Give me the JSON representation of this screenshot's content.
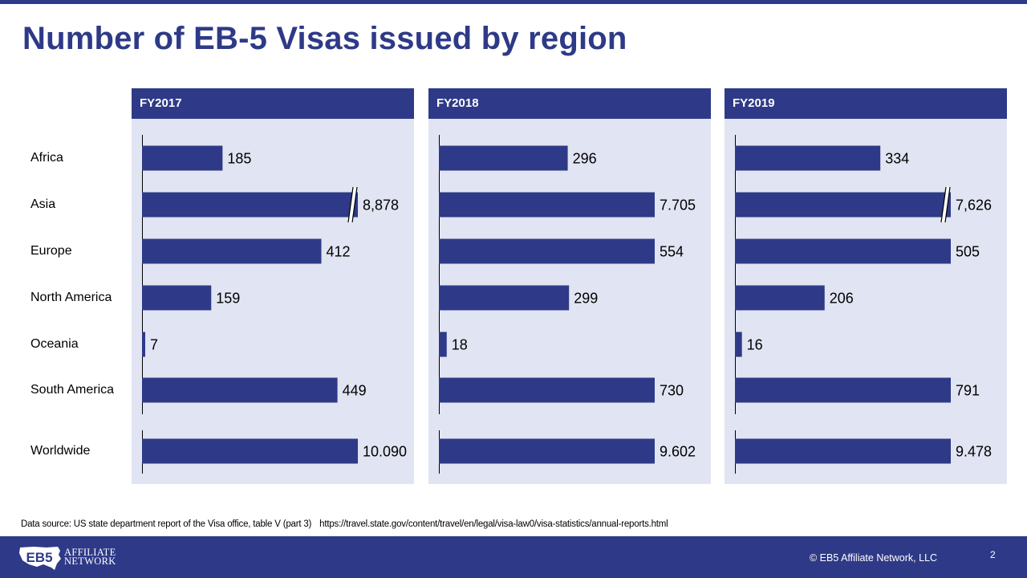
{
  "title": "Number of EB-5 Visas issued by region",
  "categories": [
    "Africa",
    "Asia",
    "Europe",
    "North America",
    "Oceania",
    "South America",
    "Worldwide"
  ],
  "chart_data": [
    {
      "type": "bar",
      "title": "FY2017",
      "categories": [
        "Africa",
        "Asia",
        "Europe",
        "North America",
        "Oceania",
        "South America",
        "Worldwide"
      ],
      "values": [
        185,
        8878,
        412,
        159,
        7,
        449,
        10090
      ],
      "labels": [
        "185",
        "8,878",
        "412",
        "159",
        "7",
        "449",
        "10.090"
      ],
      "axis_breaks": [
        "Asia"
      ]
    },
    {
      "type": "bar",
      "title": "FY2018",
      "categories": [
        "Africa",
        "Asia",
        "Europe",
        "North America",
        "Oceania",
        "South America",
        "Worldwide"
      ],
      "values": [
        296,
        7705,
        554,
        299,
        18,
        730,
        9602
      ],
      "labels": [
        "296",
        "7.705",
        "554",
        "299",
        "18",
        "730",
        "9.602"
      ],
      "axis_breaks": []
    },
    {
      "type": "bar",
      "title": "FY2019",
      "categories": [
        "Africa",
        "Asia",
        "Europe",
        "North America",
        "Oceania",
        "South America",
        "Worldwide"
      ],
      "values": [
        334,
        7626,
        505,
        206,
        16,
        791,
        9478
      ],
      "labels": [
        "334",
        "7,626",
        "505",
        "206",
        "16",
        "791",
        "9.478"
      ],
      "axis_breaks": [
        "Asia"
      ]
    }
  ],
  "source": {
    "text": "Data source: US state department report of the Visa office, table V (part 3)",
    "url": "https://travel.state.gov/content/travel/en/legal/visa-law0/visa-statistics/annual-reports.html"
  },
  "footer": {
    "logo_mark": "EB5",
    "logo_line1": "AFFILIATE",
    "logo_line2": "NETWORK",
    "copyright": "© EB5 Affiliate Network, LLC",
    "page_number": "2"
  },
  "colors": {
    "primary": "#2E3A87",
    "panel_bg": "#E1E4F2",
    "text": "#000000",
    "footer_text": "#FFFFFF"
  }
}
